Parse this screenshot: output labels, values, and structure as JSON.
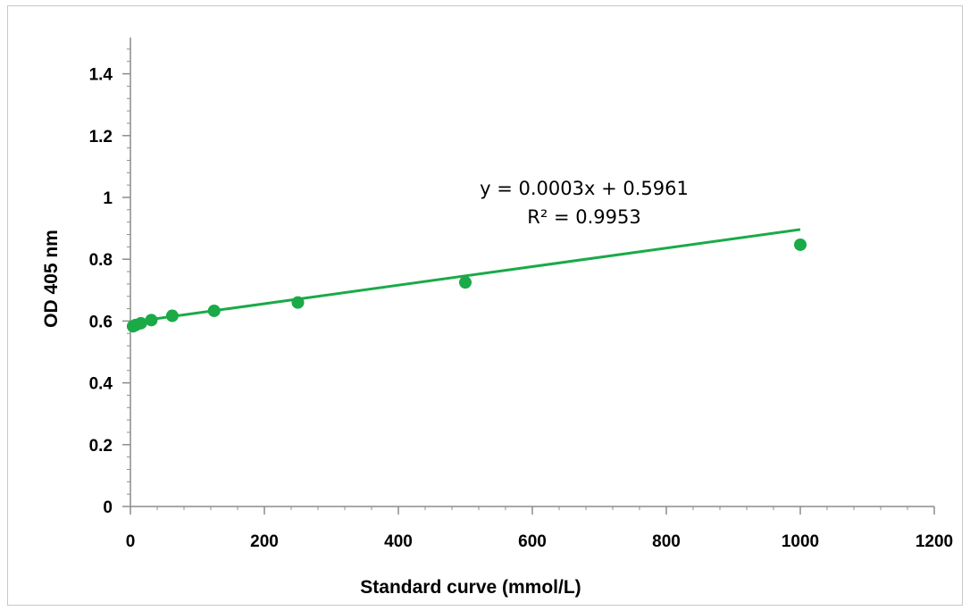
{
  "chart_data": {
    "type": "scatter",
    "title": "",
    "xlabel": "Standard curve (mmol/L)",
    "ylabel": "OD 405 nm",
    "xlim": [
      0,
      1200
    ],
    "ylim": [
      0,
      1.5
    ],
    "x_ticks": [
      0,
      200,
      400,
      600,
      800,
      1000,
      1200
    ],
    "x_tick_labels": [
      "0",
      "200",
      "400",
      "600",
      "800",
      "1000",
      "1200"
    ],
    "y_ticks": [
      0,
      0.2,
      0.4,
      0.6,
      0.8,
      1.0,
      1.2,
      1.4
    ],
    "y_tick_labels": [
      "0",
      "0.2",
      "0.4",
      "0.6",
      "0.8",
      "1",
      "1.2",
      "1.4"
    ],
    "grid": false,
    "legend": "none",
    "series": [
      {
        "color": "#1aaa48",
        "points": [
          {
            "x": 3.9,
            "y": 0.583
          },
          {
            "x": 7.8,
            "y": 0.587
          },
          {
            "x": 15.6,
            "y": 0.593
          },
          {
            "x": 31.25,
            "y": 0.603
          },
          {
            "x": 62.5,
            "y": 0.617
          },
          {
            "x": 125,
            "y": 0.633
          },
          {
            "x": 250,
            "y": 0.66
          },
          {
            "x": 500,
            "y": 0.725
          },
          {
            "x": 1000,
            "y": 0.847
          }
        ]
      }
    ],
    "trendline": {
      "type": "linear",
      "slope": 0.0003,
      "intercept": 0.5961,
      "color": "#1aaa48",
      "x_range": [
        0,
        1000
      ]
    },
    "annotations": {
      "equation": "y = 0.0003x + 0.5961",
      "r_squared": "R² = 0.9953"
    }
  }
}
